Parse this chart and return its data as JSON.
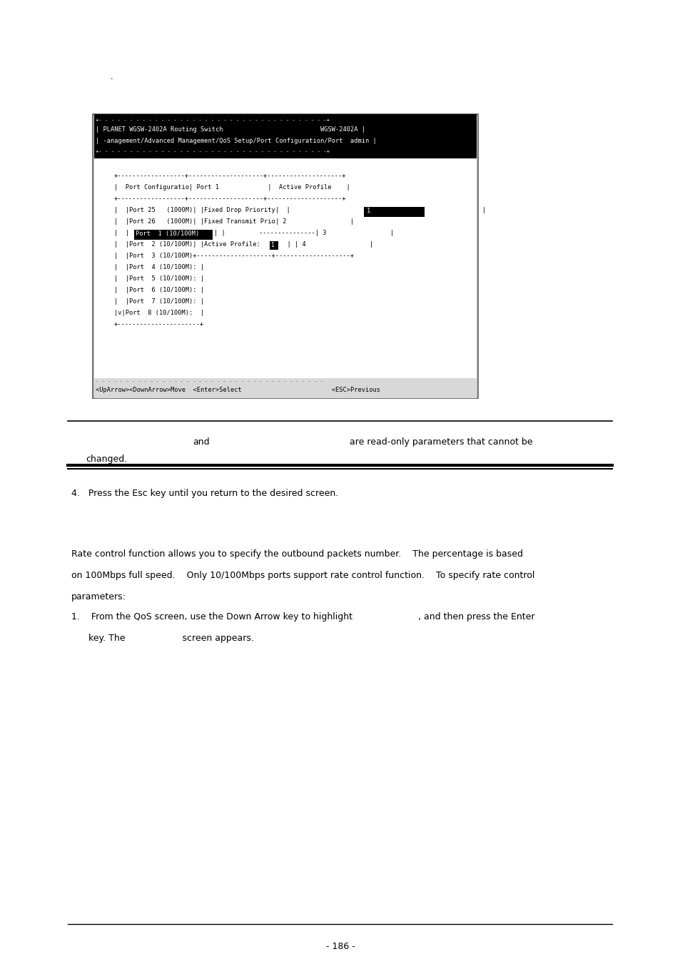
{
  "bg_color": "#ffffff",
  "page_width": 9.54,
  "page_height": 13.51,
  "dot": ".",
  "note_and": "and",
  "note_rest": "are read-only parameters that cannot be",
  "note_changed": "changed.",
  "step4": "4.   Press the Esc key until you return to the desired screen.",
  "para1": "Rate control function allows you to specify the outbound packets number.    The percentage is based",
  "para2": "on 100Mbps full speed.    Only 10/100Mbps ports support rate control function.    To specify rate control",
  "para3": "parameters:",
  "step1a": "1.    From the QoS screen, use the Down Arrow key to highlight                       , and then press the Enter",
  "step1b": "      key. The                    screen appears.",
  "page_number": "- 186 -"
}
